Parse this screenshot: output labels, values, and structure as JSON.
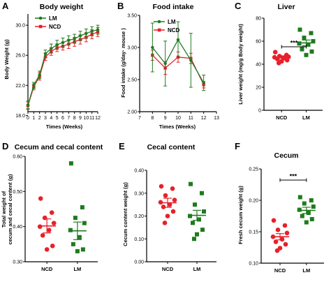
{
  "colors": {
    "ncd": "#e8202a",
    "lm": "#1e7b1e",
    "axis": "#000000"
  },
  "chart_data": [
    {
      "id": "A",
      "letter": "A",
      "type": "line",
      "title": "Body weight",
      "xlabel": "Times (Weeks)",
      "ylabel": "Body Weight (g)",
      "xlim": [
        0,
        12
      ],
      "ylim": [
        18.5,
        31.5
      ],
      "xticks": [
        0,
        1,
        2,
        3,
        4,
        5,
        6,
        7,
        8,
        9,
        10,
        11,
        12
      ],
      "yticks": [
        18,
        22,
        26,
        30
      ],
      "ytick_labels": [
        "18.0",
        "22.0",
        "26.0",
        "30.0"
      ],
      "legend": [
        "LM",
        "NCD"
      ],
      "legend_position": "top-left",
      "x": [
        0,
        1,
        2,
        3,
        4,
        5,
        6,
        7,
        8,
        9,
        10,
        11,
        12
      ],
      "series": [
        {
          "name": "LM",
          "color": "lm",
          "values": [
            19.4,
            22.0,
            23.4,
            26.2,
            26.9,
            27.4,
            27.7,
            28.0,
            28.2,
            28.6,
            28.9,
            29.2,
            29.4
          ],
          "errors": [
            0.5,
            0.4,
            0.5,
            0.5,
            0.6,
            0.6,
            0.6,
            0.6,
            0.6,
            0.6,
            0.6,
            0.6,
            0.6
          ]
        },
        {
          "name": "NCD",
          "color": "ncd",
          "values": [
            19.3,
            21.8,
            23.2,
            25.8,
            26.5,
            27.0,
            27.2,
            27.5,
            27.8,
            28.1,
            28.4,
            28.8,
            29.1
          ],
          "errors": [
            0.5,
            0.4,
            0.5,
            0.5,
            0.5,
            0.5,
            0.5,
            0.6,
            0.6,
            0.6,
            0.6,
            0.6,
            0.6
          ]
        }
      ]
    },
    {
      "id": "B",
      "letter": "B",
      "type": "line",
      "title": "Food intake",
      "xlabel": "Times (Weeks)",
      "ylabel": "Food intake (g/day· mouse )",
      "xlim": [
        7,
        13
      ],
      "ylim": [
        2.0,
        3.5
      ],
      "xticks": [
        7,
        8,
        9,
        10,
        11,
        12,
        13
      ],
      "yticks": [
        2.0,
        2.5,
        3.0,
        3.5
      ],
      "ytick_labels": [
        "2.00",
        "2.50",
        "3.00",
        "3.50"
      ],
      "legend": [
        "LM",
        "NCD"
      ],
      "legend_position": "top-right",
      "x": [
        8,
        9,
        10,
        11,
        12
      ],
      "series": [
        {
          "name": "LM",
          "color": "lm",
          "values": [
            3.0,
            2.75,
            3.12,
            2.8,
            2.45
          ],
          "errors": [
            0.38,
            0.35,
            0.28,
            0.42,
            0.12
          ]
        },
        {
          "name": "NCD",
          "color": "ncd",
          "values": [
            2.88,
            2.68,
            2.85,
            2.83,
            2.42
          ],
          "errors": [
            0.08,
            0.1,
            0.08,
            0.08,
            0.05
          ]
        }
      ]
    },
    {
      "id": "C",
      "letter": "C",
      "type": "scatter",
      "title": "Liver",
      "xlabel": "",
      "ylabel": "Liver weight (mg/g Body weight)",
      "categories": [
        "NCD",
        "LM"
      ],
      "ylim": [
        0,
        80
      ],
      "yticks": [
        0,
        20,
        40,
        60,
        80
      ],
      "ytick_labels": [
        "0",
        "20",
        "40",
        "60",
        "80"
      ],
      "significance": "***",
      "groups": [
        {
          "name": "NCD",
          "color": "ncd",
          "marker": "circle",
          "mean": 45.5,
          "sem": 1.8,
          "points": [
            50.5,
            48,
            47,
            46.5,
            46,
            45.5,
            44.5,
            43.5,
            42.5,
            41
          ]
        },
        {
          "name": "LM",
          "color": "lm",
          "marker": "square",
          "mean": 58.5,
          "sem": 2.5,
          "points": [
            70,
            67,
            63,
            60,
            58,
            57,
            53,
            51,
            48
          ]
        }
      ]
    },
    {
      "id": "D",
      "letter": "D",
      "type": "scatter",
      "title": "Cecum and cecal content",
      "xlabel": "",
      "ylabel": "Total weight of cecum and cecal content (g)",
      "ylabel_lines": [
        "Total weight of",
        "cecum and cecal content (g)"
      ],
      "categories": [
        "NCD",
        "LM"
      ],
      "ylim": [
        0.3,
        0.6
      ],
      "yticks": [
        0.3,
        0.4,
        0.5,
        0.6
      ],
      "ytick_labels": [
        "0.30",
        "0.40",
        "0.50",
        "0.60"
      ],
      "groups": [
        {
          "name": "NCD",
          "color": "ncd",
          "marker": "circle",
          "mean": 0.402,
          "sem": 0.02,
          "points": [
            0.48,
            0.44,
            0.425,
            0.41,
            0.4,
            0.39,
            0.375,
            0.345,
            0.335
          ]
        },
        {
          "name": "LM",
          "color": "lm",
          "marker": "square",
          "mean": 0.388,
          "sem": 0.025,
          "points": [
            0.58,
            0.455,
            0.425,
            0.41,
            0.39,
            0.37,
            0.35,
            0.335,
            0.33
          ]
        }
      ]
    },
    {
      "id": "E",
      "letter": "E",
      "type": "scatter",
      "title": "Cecal content",
      "xlabel": "",
      "ylabel": "Cecum content weight (g)",
      "categories": [
        "NCD",
        "LM"
      ],
      "ylim": [
        0,
        0.4
      ],
      "yticks": [
        0,
        0.1,
        0.2,
        0.3,
        0.4
      ],
      "ytick_labels": [
        "0.00",
        "0.10",
        "0.20",
        "0.30",
        "0.40"
      ],
      "groups": [
        {
          "name": "NCD",
          "color": "ncd",
          "marker": "circle",
          "mean": 0.258,
          "sem": 0.02,
          "points": [
            0.33,
            0.32,
            0.29,
            0.27,
            0.26,
            0.25,
            0.24,
            0.22,
            0.2,
            0.17
          ]
        },
        {
          "name": "LM",
          "color": "lm",
          "marker": "square",
          "mean": 0.203,
          "sem": 0.022,
          "points": [
            0.34,
            0.3,
            0.25,
            0.22,
            0.2,
            0.185,
            0.17,
            0.14,
            0.12,
            0.1
          ]
        }
      ]
    },
    {
      "id": "F",
      "letter": "F",
      "type": "scatter",
      "title": "Cecum",
      "xlabel": "",
      "ylabel": "Fresh cecum weight (g)",
      "categories": [
        "NCD",
        "LM"
      ],
      "ylim": [
        0.1,
        0.25
      ],
      "yticks": [
        0.1,
        0.15,
        0.2,
        0.25
      ],
      "ytick_labels": [
        "0.10",
        "0.15",
        "0.20",
        "0.25"
      ],
      "significance": "***",
      "groups": [
        {
          "name": "NCD",
          "color": "ncd",
          "marker": "circle",
          "mean": 0.142,
          "sem": 0.005,
          "points": [
            0.168,
            0.16,
            0.153,
            0.148,
            0.142,
            0.138,
            0.134,
            0.13,
            0.124,
            0.12
          ]
        },
        {
          "name": "LM",
          "color": "lm",
          "marker": "square",
          "mean": 0.184,
          "sem": 0.005,
          "points": [
            0.205,
            0.2,
            0.195,
            0.19,
            0.185,
            0.18,
            0.175,
            0.17,
            0.165
          ]
        }
      ]
    }
  ]
}
